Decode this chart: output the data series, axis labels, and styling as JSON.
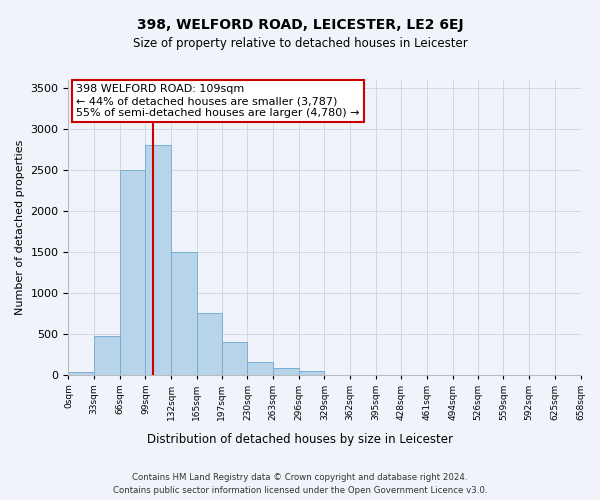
{
  "title": "398, WELFORD ROAD, LEICESTER, LE2 6EJ",
  "subtitle": "Size of property relative to detached houses in Leicester",
  "xlabel": "Distribution of detached houses by size in Leicester",
  "ylabel": "Number of detached properties",
  "bin_edges": [
    0,
    33,
    66,
    99,
    132,
    165,
    197,
    230,
    263,
    296,
    329,
    362,
    395,
    428,
    461,
    494,
    526,
    559,
    592,
    625,
    658
  ],
  "bar_heights": [
    30,
    470,
    2500,
    2800,
    1500,
    750,
    400,
    150,
    80,
    50,
    0,
    0,
    0,
    0,
    0,
    0,
    0,
    0,
    0,
    0
  ],
  "bar_color": "#b8d4ea",
  "bar_edgecolor": "#7aaed0",
  "vline_x": 109,
  "vline_color": "#cc0000",
  "annotation_box_text": "398 WELFORD ROAD: 109sqm\n← 44% of detached houses are smaller (3,787)\n55% of semi-detached houses are larger (4,780) →",
  "annotation_box_facecolor": "white",
  "annotation_box_edgecolor": "#cc0000",
  "ylim": [
    0,
    3600
  ],
  "yticks": [
    0,
    500,
    1000,
    1500,
    2000,
    2500,
    3000,
    3500
  ],
  "tick_labels": [
    "0sqm",
    "33sqm",
    "66sqm",
    "99sqm",
    "132sqm",
    "165sqm",
    "197sqm",
    "230sqm",
    "263sqm",
    "296sqm",
    "329sqm",
    "362sqm",
    "395sqm",
    "428sqm",
    "461sqm",
    "494sqm",
    "526sqm",
    "559sqm",
    "592sqm",
    "625sqm",
    "658sqm"
  ],
  "footnote1": "Contains HM Land Registry data © Crown copyright and database right 2024.",
  "footnote2": "Contains public sector information licensed under the Open Government Licence v3.0.",
  "background_color": "#f0f4fa",
  "grid_color": "#c8d4e4"
}
